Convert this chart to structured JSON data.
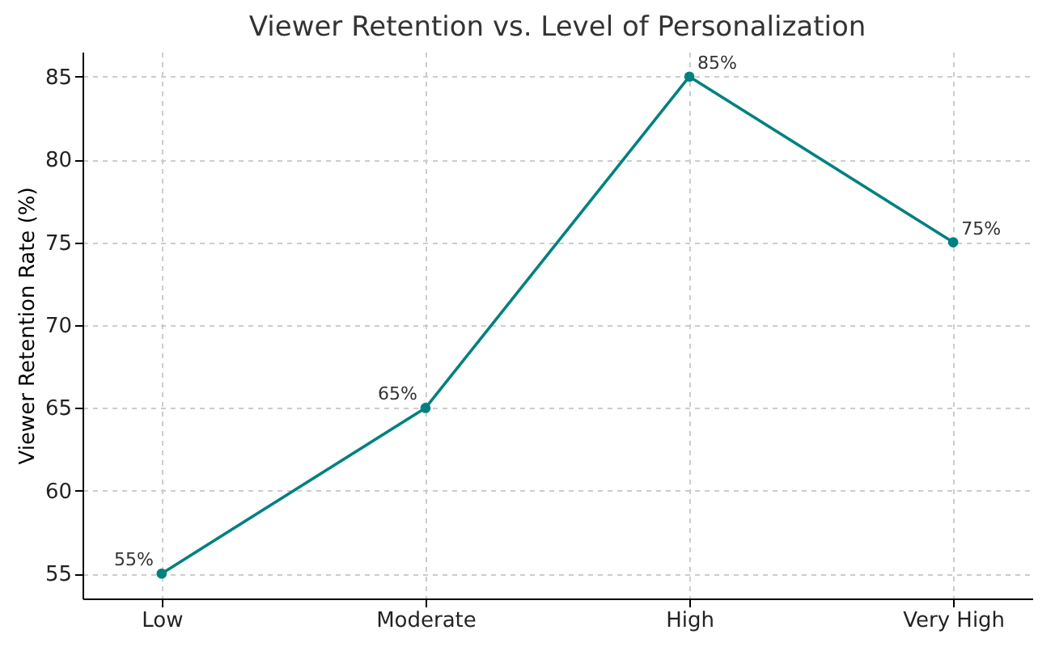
{
  "chart_data": {
    "type": "line",
    "title": "Viewer Retention vs. Level of Personalization",
    "ylabel": "Viewer Retention Rate (%)",
    "categories": [
      "Low",
      "Moderate",
      "High",
      "Very High"
    ],
    "series": [
      {
        "color": "#008080",
        "values": [
          55,
          65,
          85,
          75
        ],
        "value_labels": [
          "55%",
          "65%",
          "85%",
          "75%"
        ]
      }
    ],
    "ylim": [
      53.5,
      86.5
    ],
    "yticks": [
      55,
      60,
      65,
      70,
      75,
      80,
      85
    ],
    "grid": true,
    "marker": "circle",
    "line_style": "solid",
    "legend": false
  }
}
